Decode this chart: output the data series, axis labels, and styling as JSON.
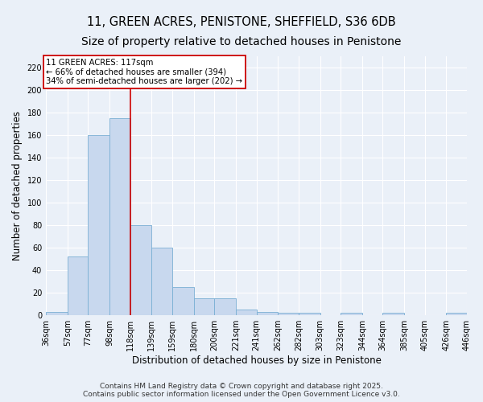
{
  "title_line1": "11, GREEN ACRES, PENISTONE, SHEFFIELD, S36 6DB",
  "title_line2": "Size of property relative to detached houses in Penistone",
  "xlabel": "Distribution of detached houses by size in Penistone",
  "ylabel": "Number of detached properties",
  "footer_line1": "Contains HM Land Registry data © Crown copyright and database right 2025.",
  "footer_line2": "Contains public sector information licensed under the Open Government Licence v3.0.",
  "bar_edges": [
    36,
    57,
    77,
    98,
    118,
    139,
    159,
    180,
    200,
    221,
    241,
    262,
    282,
    303,
    323,
    344,
    364,
    385,
    405,
    426,
    446
  ],
  "bar_heights": [
    3,
    52,
    160,
    175,
    80,
    60,
    25,
    15,
    15,
    5,
    3,
    2,
    2,
    0,
    2,
    0,
    2,
    0,
    0,
    2
  ],
  "bar_color": "#c8d8ee",
  "bar_edgecolor": "#7aafd4",
  "property_line_x": 118,
  "annotation_text_line1": "11 GREEN ACRES: 117sqm",
  "annotation_text_line2": "← 66% of detached houses are smaller (394)",
  "annotation_text_line3": "34% of semi-detached houses are larger (202) →",
  "annotation_box_color": "#ffffff",
  "annotation_box_edgecolor": "#cc0000",
  "vline_color": "#cc0000",
  "ylim": [
    0,
    230
  ],
  "yticks": [
    0,
    20,
    40,
    60,
    80,
    100,
    120,
    140,
    160,
    180,
    200,
    220
  ],
  "background_color": "#eaf0f8",
  "plot_background": "#eaf0f8",
  "grid_color": "#ffffff",
  "title_fontsize": 10.5,
  "tick_fontsize": 7,
  "label_fontsize": 8.5,
  "footer_fontsize": 6.5
}
